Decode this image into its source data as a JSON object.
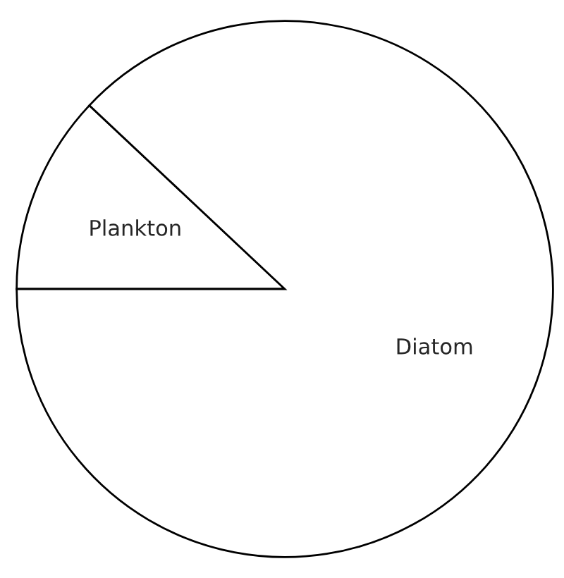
{
  "chart_data": {
    "type": "pie",
    "categories": [
      "Plankton",
      "Diatom"
    ],
    "values": [
      12,
      88
    ],
    "colors": [
      "#ffffff",
      "#ffffff"
    ]
  }
}
